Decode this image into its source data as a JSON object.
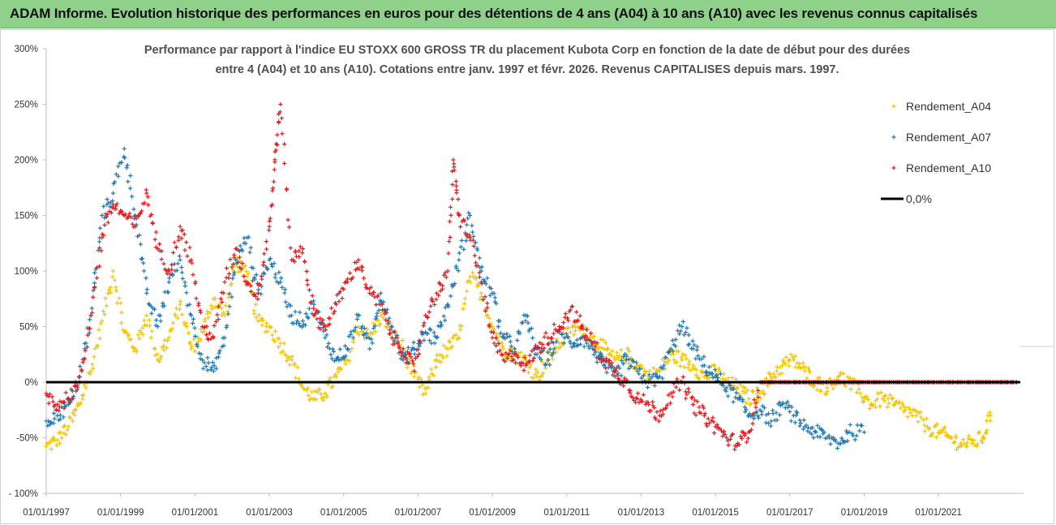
{
  "header": {
    "title": "ADAM Informe. Evolution historique des performances en euros pour des détentions de 4 ans (A04) à 10 ans (A10) avec les revenus connus capitalisés"
  },
  "chart_data": {
    "type": "scatter",
    "title_line1": "Performance par rapport à l'indice EU STOXX 600 GROSS TR  du placement Kubota Corp en fonction de la date de début pour des durées",
    "title_line2": "entre 4 (A04) et 10 ans (A10). Cotations entre janv. 1997 et févr. 2026. Revenus CAPITALISES depuis mars. 1997.",
    "xlabel": "",
    "ylabel": "",
    "xlim": [
      1997.0,
      2023.2
    ],
    "ylim": [
      -100,
      300
    ],
    "y_ticks": [
      -100,
      -50,
      0,
      50,
      100,
      150,
      200,
      250,
      300
    ],
    "y_tick_labels": [
      "- 100%",
      "-50%",
      "0%",
      "50%",
      "100%",
      "150%",
      "200%",
      "250%",
      "300%"
    ],
    "x_ticks": [
      1997,
      1999,
      2001,
      2003,
      2005,
      2007,
      2009,
      2011,
      2013,
      2015,
      2017,
      2019,
      2021
    ],
    "x_tick_labels": [
      "01/01/1997",
      "01/01/1999",
      "01/01/2001",
      "01/01/2003",
      "01/01/2005",
      "01/01/2007",
      "01/01/2009",
      "01/01/2011",
      "01/01/2013",
      "01/01/2015",
      "01/01/2017",
      "01/01/2019",
      "01/01/2021"
    ],
    "legend_position": "top-right",
    "series": [
      {
        "name": "Rendement_A04",
        "color": "#f5c400",
        "x": [
          1997.0,
          1997.3,
          1997.6,
          1997.9,
          1998.2,
          1998.5,
          1998.8,
          1999.1,
          1999.4,
          1999.7,
          2000.0,
          2000.3,
          2000.6,
          2000.9,
          2001.2,
          2001.5,
          2001.8,
          2002.1,
          2002.4,
          2002.7,
          2003.0,
          2003.3,
          2003.6,
          2003.9,
          2004.2,
          2004.5,
          2004.8,
          2005.1,
          2005.4,
          2005.7,
          2006.0,
          2006.3,
          2006.6,
          2006.9,
          2007.2,
          2007.5,
          2007.8,
          2008.1,
          2008.4,
          2008.7,
          2009.0,
          2009.3,
          2009.6,
          2009.9,
          2010.2,
          2010.5,
          2010.8,
          2011.1,
          2011.4,
          2011.7,
          2012.0,
          2012.3,
          2012.6,
          2012.9,
          2013.2,
          2013.5,
          2013.8,
          2014.1,
          2014.4,
          2014.7,
          2015.0,
          2015.3,
          2015.6,
          2015.9,
          2016.2,
          2016.5,
          2016.8,
          2017.1,
          2017.4,
          2017.7,
          2018.0,
          2018.3,
          2018.6,
          2018.9,
          2019.2,
          2019.5,
          2019.8,
          2020.1,
          2020.4,
          2020.7,
          2021.0,
          2021.3,
          2021.6,
          2021.9,
          2022.2,
          2022.4
        ],
        "y": [
          -58,
          -52,
          -40,
          -20,
          10,
          55,
          100,
          45,
          30,
          60,
          20,
          40,
          70,
          30,
          45,
          75,
          60,
          110,
          95,
          55,
          50,
          35,
          20,
          -5,
          -15,
          -10,
          5,
          20,
          50,
          40,
          60,
          45,
          30,
          5,
          -10,
          20,
          30,
          40,
          95,
          80,
          50,
          30,
          25,
          20,
          5,
          20,
          35,
          45,
          50,
          40,
          30,
          20,
          25,
          15,
          5,
          10,
          25,
          20,
          15,
          5,
          10,
          0,
          -5,
          -15,
          -10,
          5,
          15,
          20,
          10,
          0,
          -5,
          5,
          0,
          -10,
          -20,
          -15,
          -20,
          -25,
          -30,
          -40,
          -45,
          -50,
          -55,
          -55,
          -50,
          -30
        ]
      },
      {
        "name": "Rendement_A07",
        "color": "#1f77b4",
        "x": [
          1997.0,
          1997.3,
          1997.6,
          1997.9,
          1998.2,
          1998.5,
          1998.8,
          1999.1,
          1999.4,
          1999.7,
          2000.0,
          2000.3,
          2000.6,
          2000.9,
          2001.2,
          2001.5,
          2001.8,
          2002.1,
          2002.4,
          2002.7,
          2003.0,
          2003.3,
          2003.6,
          2003.9,
          2004.2,
          2004.5,
          2004.8,
          2005.1,
          2005.4,
          2005.7,
          2006.0,
          2006.3,
          2006.6,
          2006.9,
          2007.2,
          2007.5,
          2007.8,
          2008.1,
          2008.4,
          2008.7,
          2009.0,
          2009.3,
          2009.6,
          2009.9,
          2010.2,
          2010.5,
          2010.8,
          2011.1,
          2011.4,
          2011.7,
          2012.0,
          2012.3,
          2012.6,
          2012.9,
          2013.2,
          2013.5,
          2013.8,
          2014.1,
          2014.4,
          2014.7,
          2015.0,
          2015.3,
          2015.6,
          2015.9,
          2016.2,
          2016.5,
          2016.8,
          2017.1,
          2017.4,
          2017.7,
          2018.0,
          2018.3,
          2018.6,
          2019.0
        ],
        "y": [
          -35,
          -30,
          -20,
          5,
          60,
          150,
          170,
          210,
          150,
          80,
          50,
          90,
          110,
          60,
          20,
          10,
          40,
          110,
          130,
          80,
          110,
          90,
          60,
          55,
          70,
          40,
          20,
          30,
          60,
          30,
          80,
          50,
          20,
          30,
          45,
          40,
          70,
          110,
          150,
          100,
          80,
          40,
          30,
          60,
          25,
          20,
          45,
          35,
          40,
          30,
          15,
          5,
          20,
          10,
          0,
          5,
          30,
          50,
          30,
          15,
          5,
          -5,
          -15,
          -30,
          -25,
          -35,
          -20,
          -30,
          -40,
          -45,
          -50,
          -55,
          -45,
          -45
        ]
      },
      {
        "name": "Rendement_A10",
        "color": "#e31a1c",
        "x": [
          1997.0,
          1997.3,
          1997.6,
          1997.9,
          1998.2,
          1998.5,
          1998.8,
          1999.1,
          1999.4,
          1999.7,
          2000.0,
          2000.3,
          2000.6,
          2000.9,
          2001.2,
          2001.5,
          2001.8,
          2002.1,
          2002.4,
          2002.7,
          2003.0,
          2003.15,
          2003.3,
          2003.6,
          2003.9,
          2004.2,
          2004.5,
          2004.8,
          2005.1,
          2005.4,
          2005.7,
          2006.0,
          2006.3,
          2006.6,
          2006.9,
          2007.2,
          2007.5,
          2007.8,
          2007.95,
          2008.1,
          2008.4,
          2008.7,
          2009.0,
          2009.3,
          2009.6,
          2009.9,
          2010.2,
          2010.5,
          2010.8,
          2011.1,
          2011.4,
          2011.7,
          2012.0,
          2012.3,
          2012.6,
          2012.9,
          2013.2,
          2013.5,
          2013.8,
          2014.1,
          2014.4,
          2014.7,
          2015.0,
          2015.3,
          2015.6,
          2015.9,
          2016.2,
          2016.5,
          2016.8,
          2017.1,
          2017.4,
          2017.7,
          2018.0,
          2018.3,
          2018.6,
          2018.9,
          2019.2,
          2019.5,
          2019.8,
          2020.1,
          2020.4,
          2020.7,
          2021.0,
          2021.3,
          2021.6,
          2021.9,
          2022.2,
          2022.5,
          2022.8,
          2023.1
        ],
        "y": [
          -10,
          -20,
          -15,
          0,
          60,
          130,
          160,
          150,
          140,
          170,
          120,
          100,
          140,
          110,
          50,
          40,
          90,
          120,
          90,
          80,
          140,
          200,
          250,
          110,
          120,
          60,
          50,
          70,
          90,
          110,
          80,
          70,
          40,
          30,
          10,
          60,
          80,
          100,
          200,
          150,
          130,
          90,
          40,
          20,
          25,
          15,
          30,
          40,
          50,
          65,
          50,
          35,
          20,
          10,
          0,
          -15,
          -20,
          -30,
          -10,
          0,
          -20,
          -30,
          -40,
          -50,
          -55,
          -45,
          0,
          0,
          0,
          0,
          0,
          0,
          0,
          0,
          0,
          0,
          0,
          0,
          0,
          0,
          0,
          0,
          0,
          0,
          0,
          0,
          0,
          0,
          0,
          0
        ]
      },
      {
        "name": "0,0%",
        "color": "#000000",
        "x": [
          1997.0,
          2023.2
        ],
        "y": [
          0,
          0
        ]
      }
    ]
  }
}
